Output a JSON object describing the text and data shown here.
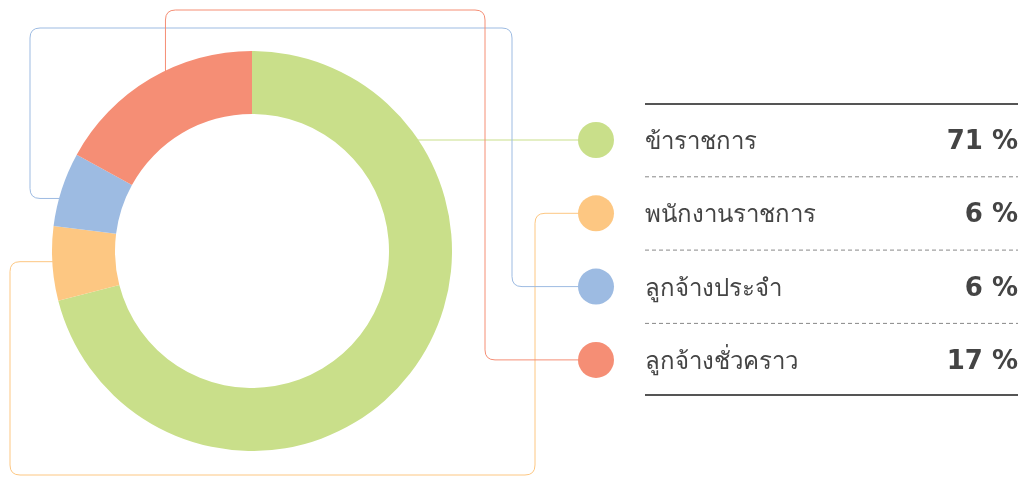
{
  "chart_data": {
    "type": "donut",
    "categories": [
      "ข้าราชการ",
      "พนักงานราชการ",
      "ลูกจ้างประจำ",
      "ลูกจ้างชั่วคราว"
    ],
    "values": [
      71,
      6,
      6,
      17
    ],
    "colors": [
      "#c9df8a",
      "#fdc782",
      "#9dbbe2",
      "#f58e75"
    ],
    "value_labels": [
      "71 %",
      "6 %",
      "6 %",
      "17 %"
    ],
    "legend": "right"
  }
}
